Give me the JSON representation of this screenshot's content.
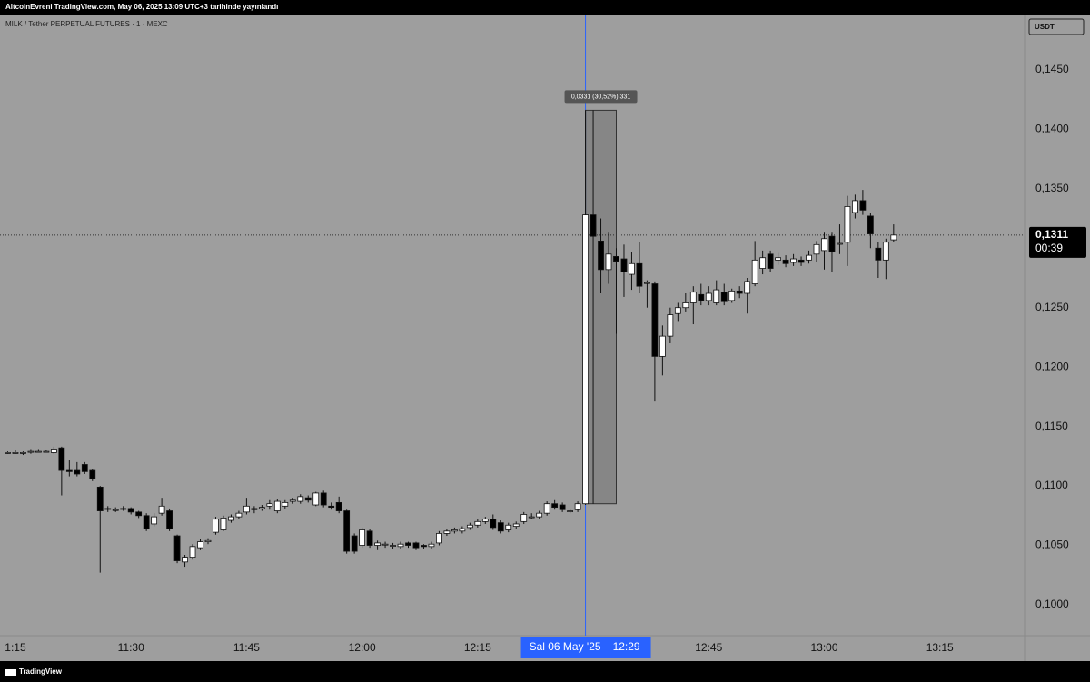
{
  "header": {
    "title": "AltcoinEvreni TradingView.com, May 06, 2025 13:09 UTC+3 tarihinde yayınlandı"
  },
  "footer": {
    "brand": "TradingView"
  },
  "chart_data": {
    "type": "candlestick",
    "symbol": "MILK / Tether PERPETUAL FUTURES · 1 · MEXC",
    "currency": "USDT",
    "up_color": "#ffffff",
    "down_color": "#000000",
    "grid": false,
    "xlim": [
      "11:13",
      "13:26"
    ],
    "xticks": [
      {
        "value": "11:15",
        "label": "1:15"
      },
      "11:30",
      "11:45",
      "12:00",
      "12:15",
      "12:45",
      "13:00",
      "13:15"
    ],
    "ylim": [
      0.0974,
      0.1495
    ],
    "yticks": [
      {
        "value": 0.1,
        "label": "0,1000"
      },
      {
        "value": 0.105,
        "label": "0,1050"
      },
      {
        "value": 0.11,
        "label": "0,1100"
      },
      {
        "value": 0.115,
        "label": "0,1150"
      },
      {
        "value": 0.12,
        "label": "0,1200"
      },
      {
        "value": 0.125,
        "label": "0,1250"
      },
      {
        "value": 0.13,
        "label": "0,1300"
      },
      {
        "value": 0.135,
        "label": "0,1350"
      },
      {
        "value": 0.14,
        "label": "0,1400"
      },
      {
        "value": 0.145,
        "label": "0,1450"
      }
    ],
    "x": [
      "11:14",
      "11:15",
      "11:16",
      "11:17",
      "11:18",
      "11:19",
      "11:20",
      "11:21",
      "11:22",
      "11:23",
      "11:24",
      "11:25",
      "11:26",
      "11:27",
      "11:28",
      "11:29",
      "11:30",
      "11:31",
      "11:32",
      "11:33",
      "11:34",
      "11:35",
      "11:36",
      "11:37",
      "11:38",
      "11:39",
      "11:40",
      "11:41",
      "11:42",
      "11:43",
      "11:44",
      "11:45",
      "11:46",
      "11:47",
      "11:48",
      "11:49",
      "11:50",
      "11:51",
      "11:52",
      "11:53",
      "11:54",
      "11:55",
      "11:56",
      "11:57",
      "11:58",
      "11:59",
      "12:00",
      "12:01",
      "12:02",
      "12:03",
      "12:04",
      "12:05",
      "12:06",
      "12:07",
      "12:08",
      "12:09",
      "12:10",
      "12:11",
      "12:12",
      "12:13",
      "12:14",
      "12:15",
      "12:16",
      "12:17",
      "12:18",
      "12:19",
      "12:20",
      "12:21",
      "12:22",
      "12:23",
      "12:24",
      "12:25",
      "12:26",
      "12:27",
      "12:28",
      "12:29",
      "12:30",
      "12:31",
      "12:32",
      "12:33",
      "12:34",
      "12:35",
      "12:36",
      "12:37",
      "12:38",
      "12:39",
      "12:40",
      "12:41",
      "12:42",
      "12:43",
      "12:44",
      "12:45",
      "12:46",
      "12:47",
      "12:48",
      "12:49",
      "12:50",
      "12:51",
      "12:52",
      "12:53",
      "12:54",
      "12:55",
      "12:56",
      "12:57",
      "12:58",
      "12:59",
      "13:00",
      "13:01",
      "13:02",
      "13:03",
      "13:04",
      "13:05",
      "13:06",
      "13:07",
      "13:08",
      "13:09"
    ],
    "ohlc": [
      [
        0.1128,
        0.1129,
        0.1127,
        0.1128
      ],
      [
        0.1128,
        0.113,
        0.1127,
        0.1128
      ],
      [
        0.1128,
        0.1129,
        0.1126,
        0.1128
      ],
      [
        0.1129,
        0.1131,
        0.1127,
        0.1129
      ],
      [
        0.1129,
        0.1131,
        0.1128,
        0.1129
      ],
      [
        0.1129,
        0.113,
        0.1128,
        0.1129
      ],
      [
        0.1128,
        0.1133,
        0.1127,
        0.1131
      ],
      [
        0.1132,
        0.1133,
        0.1092,
        0.1113
      ],
      [
        0.1113,
        0.1122,
        0.1108,
        0.1112
      ],
      [
        0.1113,
        0.112,
        0.1108,
        0.111
      ],
      [
        0.1118,
        0.112,
        0.111,
        0.1112
      ],
      [
        0.1113,
        0.1114,
        0.1104,
        0.1106
      ],
      [
        0.1099,
        0.11,
        0.1027,
        0.1079
      ],
      [
        0.1081,
        0.1083,
        0.1078,
        0.1081
      ],
      [
        0.108,
        0.1082,
        0.1078,
        0.108
      ],
      [
        0.1081,
        0.1083,
        0.1079,
        0.1081
      ],
      [
        0.1081,
        0.1082,
        0.1076,
        0.1078
      ],
      [
        0.1078,
        0.1079,
        0.1073,
        0.1075
      ],
      [
        0.1075,
        0.1077,
        0.1062,
        0.1064
      ],
      [
        0.1068,
        0.1077,
        0.1066,
        0.1074
      ],
      [
        0.1077,
        0.109,
        0.1075,
        0.1083
      ],
      [
        0.1079,
        0.1081,
        0.1062,
        0.1064
      ],
      [
        0.1058,
        0.1059,
        0.1035,
        0.1037
      ],
      [
        0.1036,
        0.1042,
        0.1032,
        0.104
      ],
      [
        0.104,
        0.1051,
        0.1038,
        0.1049
      ],
      [
        0.1048,
        0.1055,
        0.1046,
        0.1053
      ],
      [
        0.1053,
        0.1056,
        0.1051,
        0.1054
      ],
      [
        0.1061,
        0.1074,
        0.1059,
        0.1072
      ],
      [
        0.1063,
        0.1075,
        0.1062,
        0.1073
      ],
      [
        0.1071,
        0.1076,
        0.1069,
        0.1074
      ],
      [
        0.1074,
        0.1079,
        0.1072,
        0.1077
      ],
      [
        0.1078,
        0.109,
        0.1076,
        0.1083
      ],
      [
        0.108,
        0.1083,
        0.1077,
        0.1081
      ],
      [
        0.1081,
        0.1084,
        0.1079,
        0.1082
      ],
      [
        0.1083,
        0.1088,
        0.108,
        0.1085
      ],
      [
        0.1079,
        0.1089,
        0.1077,
        0.1087
      ],
      [
        0.1083,
        0.1088,
        0.1081,
        0.1086
      ],
      [
        0.1087,
        0.109,
        0.1085,
        0.1088
      ],
      [
        0.1087,
        0.1093,
        0.1085,
        0.1091
      ],
      [
        0.109,
        0.1092,
        0.1086,
        0.1088
      ],
      [
        0.1084,
        0.1095,
        0.1083,
        0.1094
      ],
      [
        0.1094,
        0.1096,
        0.1082,
        0.1084
      ],
      [
        0.1083,
        0.1086,
        0.108,
        0.1082
      ],
      [
        0.1086,
        0.1091,
        0.1077,
        0.1079
      ],
      [
        0.1079,
        0.108,
        0.1043,
        0.1045
      ],
      [
        0.1058,
        0.106,
        0.1043,
        0.1045
      ],
      [
        0.105,
        0.1065,
        0.1048,
        0.1063
      ],
      [
        0.1062,
        0.1064,
        0.1048,
        0.105
      ],
      [
        0.105,
        0.1054,
        0.1046,
        0.1052
      ],
      [
        0.1051,
        0.1053,
        0.1048,
        0.1051
      ],
      [
        0.105,
        0.1052,
        0.1047,
        0.105
      ],
      [
        0.1049,
        0.1053,
        0.1047,
        0.1051
      ],
      [
        0.1052,
        0.1053,
        0.1048,
        0.105
      ],
      [
        0.1052,
        0.1053,
        0.1046,
        0.1048
      ],
      [
        0.105,
        0.1051,
        0.1047,
        0.1049
      ],
      [
        0.1049,
        0.1053,
        0.1047,
        0.1051
      ],
      [
        0.1052,
        0.1062,
        0.105,
        0.106
      ],
      [
        0.106,
        0.1064,
        0.1058,
        0.1062
      ],
      [
        0.1062,
        0.1065,
        0.106,
        0.1063
      ],
      [
        0.1062,
        0.1066,
        0.106,
        0.1064
      ],
      [
        0.1065,
        0.1069,
        0.1063,
        0.1067
      ],
      [
        0.1067,
        0.1072,
        0.1065,
        0.107
      ],
      [
        0.107,
        0.1074,
        0.1068,
        0.1072
      ],
      [
        0.1072,
        0.1076,
        0.1063,
        0.1065
      ],
      [
        0.1069,
        0.1071,
        0.106,
        0.1062
      ],
      [
        0.1063,
        0.1069,
        0.1061,
        0.1067
      ],
      [
        0.1066,
        0.107,
        0.1064,
        0.1068
      ],
      [
        0.107,
        0.1078,
        0.1068,
        0.1076
      ],
      [
        0.1074,
        0.1077,
        0.1072,
        0.1074
      ],
      [
        0.1074,
        0.1079,
        0.1072,
        0.1077
      ],
      [
        0.1077,
        0.1087,
        0.1075,
        0.1085
      ],
      [
        0.1085,
        0.1088,
        0.108,
        0.1082
      ],
      [
        0.1084,
        0.1086,
        0.1078,
        0.108
      ],
      [
        0.1079,
        0.1081,
        0.1077,
        0.1079
      ],
      [
        0.108,
        0.1087,
        0.1078,
        0.1085
      ],
      [
        0.1085,
        0.1416,
        0.1084,
        0.1328
      ],
      [
        0.1328,
        0.1416,
        0.1085,
        0.131
      ],
      [
        0.1306,
        0.1325,
        0.1262,
        0.1282
      ],
      [
        0.1282,
        0.1313,
        0.127,
        0.1295
      ],
      [
        0.1293,
        0.13,
        0.1228,
        0.1289
      ],
      [
        0.1291,
        0.1303,
        0.1259,
        0.128
      ],
      [
        0.1278,
        0.1297,
        0.1265,
        0.1287
      ],
      [
        0.1287,
        0.1305,
        0.1262,
        0.1268
      ],
      [
        0.1271,
        0.1273,
        0.125,
        0.1271
      ],
      [
        0.127,
        0.1272,
        0.1171,
        0.1209
      ],
      [
        0.1209,
        0.1235,
        0.1193,
        0.1226
      ],
      [
        0.1226,
        0.125,
        0.122,
        0.1244
      ],
      [
        0.1245,
        0.1254,
        0.1238,
        0.125
      ],
      [
        0.125,
        0.1262,
        0.1246,
        0.1254
      ],
      [
        0.1254,
        0.1268,
        0.1236,
        0.1263
      ],
      [
        0.1261,
        0.127,
        0.1252,
        0.1256
      ],
      [
        0.1256,
        0.1268,
        0.1252,
        0.1262
      ],
      [
        0.1254,
        0.1273,
        0.1252,
        0.1265
      ],
      [
        0.1263,
        0.127,
        0.1252,
        0.1255
      ],
      [
        0.1256,
        0.1266,
        0.1254,
        0.1264
      ],
      [
        0.1264,
        0.1268,
        0.1258,
        0.1262
      ],
      [
        0.1262,
        0.1275,
        0.1245,
        0.1272
      ],
      [
        0.127,
        0.1306,
        0.1268,
        0.129
      ],
      [
        0.1283,
        0.1298,
        0.1278,
        0.1292
      ],
      [
        0.1295,
        0.1298,
        0.128,
        0.1283
      ],
      [
        0.129,
        0.1296,
        0.1286,
        0.1292
      ],
      [
        0.129,
        0.1294,
        0.1284,
        0.1287
      ],
      [
        0.1288,
        0.1295,
        0.1285,
        0.1291
      ],
      [
        0.129,
        0.1293,
        0.1285,
        0.1288
      ],
      [
        0.129,
        0.1298,
        0.1287,
        0.1294
      ],
      [
        0.1295,
        0.1306,
        0.1288,
        0.1303
      ],
      [
        0.1298,
        0.1313,
        0.1282,
        0.1308
      ],
      [
        0.131,
        0.1313,
        0.128,
        0.1297
      ],
      [
        0.1304,
        0.132,
        0.1295,
        0.1304
      ],
      [
        0.1305,
        0.1344,
        0.1285,
        0.1335
      ],
      [
        0.133,
        0.1345,
        0.1325,
        0.134
      ],
      [
        0.134,
        0.1349,
        0.1328,
        0.1332
      ],
      [
        0.1327,
        0.133,
        0.13,
        0.1312
      ],
      [
        0.13,
        0.1305,
        0.1275,
        0.129
      ],
      [
        0.129,
        0.1308,
        0.1274,
        0.1305
      ],
      [
        0.1307,
        0.132,
        0.1305,
        0.1311
      ]
    ],
    "last_price": {
      "value": 0.1311,
      "label": "0,1311",
      "countdown": "00:39"
    },
    "measure": {
      "label": "0,0331 (30,52%) 331",
      "from": "12:29",
      "to": "12:33",
      "high": 0.1416,
      "low": 0.1085
    },
    "crosshair": {
      "date_label": "Sal 06 May '25",
      "time_label": "12:29"
    }
  }
}
